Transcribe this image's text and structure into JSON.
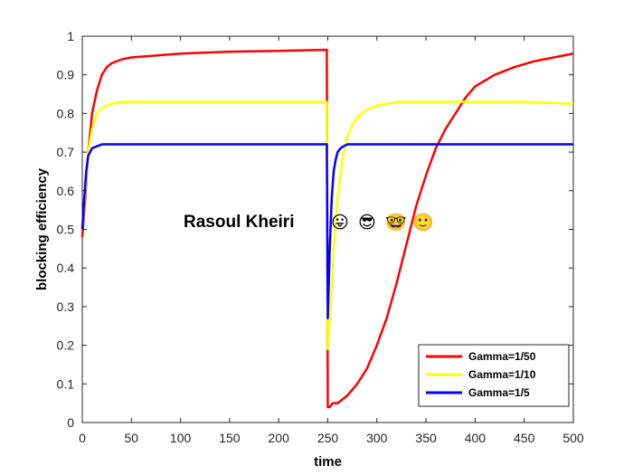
{
  "chart_data": {
    "type": "line",
    "xlabel": "time",
    "ylabel": "blocking efficiency",
    "xlim": [
      0,
      500
    ],
    "ylim": [
      0,
      1
    ],
    "xticks": [
      0,
      50,
      100,
      150,
      200,
      250,
      300,
      350,
      400,
      450,
      500
    ],
    "yticks": [
      0,
      0.1,
      0.2,
      0.3,
      0.4,
      0.5,
      0.6,
      0.7,
      0.8,
      0.9,
      1
    ],
    "grid": false,
    "legend_position": "bottom-right",
    "annotation": {
      "text": "Rasoul Kheiri",
      "emojis": [
        "😛",
        "😎",
        "🤓",
        "🙂"
      ],
      "x": 150,
      "y": 0.52
    },
    "colors": {
      "red": "#ff0000",
      "yellow": "#ffff00",
      "blue": "#0000ff"
    },
    "series": [
      {
        "name": "Gamma=1/50",
        "color": "#ff0000",
        "x": [
          0,
          3,
          6,
          10,
          15,
          20,
          25,
          30,
          40,
          50,
          75,
          100,
          150,
          200,
          249,
          250,
          252,
          255,
          260,
          270,
          280,
          290,
          300,
          310,
          320,
          330,
          340,
          350,
          360,
          370,
          380,
          390,
          400,
          420,
          440,
          460,
          480,
          500
        ],
        "y": [
          0.48,
          0.58,
          0.7,
          0.8,
          0.86,
          0.9,
          0.92,
          0.93,
          0.94,
          0.945,
          0.95,
          0.955,
          0.96,
          0.962,
          0.965,
          0.04,
          0.04,
          0.05,
          0.05,
          0.07,
          0.1,
          0.14,
          0.2,
          0.27,
          0.36,
          0.46,
          0.56,
          0.64,
          0.71,
          0.76,
          0.8,
          0.84,
          0.87,
          0.9,
          0.92,
          0.935,
          0.945,
          0.955
        ]
      },
      {
        "name": "Gamma=1/10",
        "color": "#ffff00",
        "x": [
          0,
          3,
          6,
          10,
          15,
          20,
          30,
          40,
          60,
          100,
          150,
          200,
          249,
          250,
          253,
          256,
          260,
          265,
          270,
          275,
          280,
          290,
          300,
          320,
          350,
          400,
          450,
          500
        ],
        "y": [
          0.5,
          0.6,
          0.7,
          0.76,
          0.8,
          0.815,
          0.825,
          0.83,
          0.83,
          0.83,
          0.83,
          0.83,
          0.83,
          0.19,
          0.3,
          0.45,
          0.58,
          0.68,
          0.74,
          0.77,
          0.79,
          0.81,
          0.82,
          0.83,
          0.83,
          0.83,
          0.83,
          0.825
        ]
      },
      {
        "name": "Gamma=1/5",
        "color": "#0000ff",
        "x": [
          0,
          2,
          4,
          6,
          8,
          10,
          15,
          20,
          50,
          100,
          150,
          200,
          249,
          250,
          252,
          254,
          256,
          258,
          260,
          263,
          266,
          270,
          280,
          300,
          350,
          400,
          450,
          500
        ],
        "y": [
          0.5,
          0.58,
          0.65,
          0.69,
          0.7,
          0.71,
          0.715,
          0.72,
          0.72,
          0.72,
          0.72,
          0.72,
          0.72,
          0.27,
          0.45,
          0.58,
          0.65,
          0.68,
          0.7,
          0.71,
          0.715,
          0.72,
          0.72,
          0.72,
          0.72,
          0.72,
          0.72,
          0.72
        ]
      }
    ]
  }
}
